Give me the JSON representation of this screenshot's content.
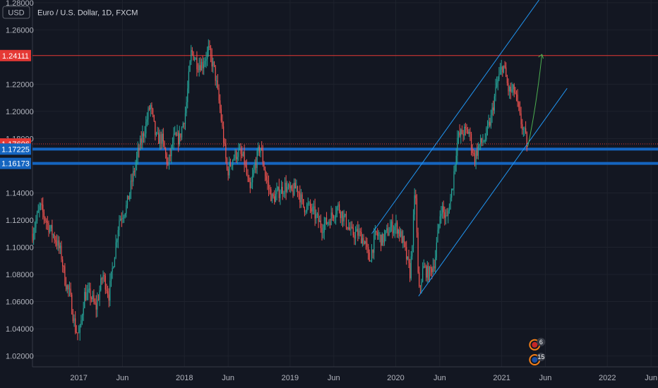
{
  "header": {
    "currency_unit": "USD",
    "symbol_title": "Euro / U.S. Dollar, 1D, FXCM"
  },
  "colors": {
    "background": "#131722",
    "up": "#26a69a",
    "down": "#ef5350",
    "resistance": "#e53935",
    "support": "#1565c0",
    "channel": "#2196f3",
    "projection": "#4caf50"
  },
  "chart_data": {
    "type": "line",
    "title": "Euro / U.S. Dollar, 1D, FXCM",
    "ylim": [
      1.012,
      1.282
    ],
    "xlim": [
      "2016-07-25",
      "2022-06-25"
    ],
    "y_ticks": [
      "1.28000",
      "1.26000",
      "1.22000",
      "1.20000",
      "1.18000",
      "1.14000",
      "1.12000",
      "1.10000",
      "1.08000",
      "1.06000",
      "1.04000",
      "1.02000"
    ],
    "x_ticks": [
      {
        "label": "2017",
        "date": "2017-01-01"
      },
      {
        "label": "Jun",
        "date": "2017-06-01"
      },
      {
        "label": "2018",
        "date": "2018-01-01"
      },
      {
        "label": "Jun",
        "date": "2018-06-01"
      },
      {
        "label": "2019",
        "date": "2019-01-01"
      },
      {
        "label": "Jun",
        "date": "2019-06-01"
      },
      {
        "label": "2020",
        "date": "2020-01-01"
      },
      {
        "label": "Jun",
        "date": "2020-06-01"
      },
      {
        "label": "2021",
        "date": "2021-01-01"
      },
      {
        "label": "Jun",
        "date": "2021-06-01"
      },
      {
        "label": "2022",
        "date": "2022-01-01"
      },
      {
        "label": "Jun",
        "date": "2022-06-01"
      }
    ],
    "series": [
      {
        "values": [
          [
            "2016-07-25",
            1.11
          ],
          [
            "2016-08-20",
            1.13
          ],
          [
            "2016-09-20",
            1.115
          ],
          [
            "2016-10-15",
            1.105
          ],
          [
            "2016-11-01",
            1.095
          ],
          [
            "2016-11-15",
            1.075
          ],
          [
            "2016-12-01",
            1.065
          ],
          [
            "2016-12-20",
            1.04
          ],
          [
            "2017-01-03",
            1.035
          ],
          [
            "2017-01-20",
            1.065
          ],
          [
            "2017-02-10",
            1.065
          ],
          [
            "2017-03-01",
            1.055
          ],
          [
            "2017-03-25",
            1.08
          ],
          [
            "2017-04-15",
            1.065
          ],
          [
            "2017-05-01",
            1.09
          ],
          [
            "2017-05-20",
            1.12
          ],
          [
            "2017-06-15",
            1.13
          ],
          [
            "2017-07-05",
            1.15
          ],
          [
            "2017-07-25",
            1.17
          ],
          [
            "2017-08-20",
            1.19
          ],
          [
            "2017-09-05",
            1.205
          ],
          [
            "2017-09-25",
            1.18
          ],
          [
            "2017-10-15",
            1.18
          ],
          [
            "2017-11-05",
            1.16
          ],
          [
            "2017-11-25",
            1.18
          ],
          [
            "2017-12-15",
            1.18
          ],
          [
            "2018-01-05",
            1.2
          ],
          [
            "2018-01-25",
            1.245
          ],
          [
            "2018-02-15",
            1.235
          ],
          [
            "2018-03-05",
            1.235
          ],
          [
            "2018-03-25",
            1.245
          ],
          [
            "2018-04-15",
            1.23
          ],
          [
            "2018-05-05",
            1.2
          ],
          [
            "2018-05-29",
            1.155
          ],
          [
            "2018-06-15",
            1.165
          ],
          [
            "2018-07-05",
            1.17
          ],
          [
            "2018-07-25",
            1.165
          ],
          [
            "2018-08-15",
            1.14
          ],
          [
            "2018-09-01",
            1.16
          ],
          [
            "2018-09-20",
            1.175
          ],
          [
            "2018-10-10",
            1.15
          ],
          [
            "2018-11-01",
            1.135
          ],
          [
            "2018-11-20",
            1.14
          ],
          [
            "2018-12-15",
            1.145
          ],
          [
            "2019-01-05",
            1.14
          ],
          [
            "2019-01-25",
            1.145
          ],
          [
            "2019-02-15",
            1.13
          ],
          [
            "2019-03-05",
            1.13
          ],
          [
            "2019-03-25",
            1.125
          ],
          [
            "2019-04-20",
            1.115
          ],
          [
            "2019-05-15",
            1.12
          ],
          [
            "2019-06-15",
            1.13
          ],
          [
            "2019-07-10",
            1.12
          ],
          [
            "2019-08-01",
            1.11
          ],
          [
            "2019-08-25",
            1.11
          ],
          [
            "2019-09-15",
            1.105
          ],
          [
            "2019-10-01",
            1.09
          ],
          [
            "2019-10-25",
            1.11
          ],
          [
            "2019-11-15",
            1.105
          ],
          [
            "2019-12-15",
            1.115
          ],
          [
            "2020-01-05",
            1.115
          ],
          [
            "2020-01-25",
            1.105
          ],
          [
            "2020-02-20",
            1.08
          ],
          [
            "2020-03-09",
            1.145
          ],
          [
            "2020-03-20",
            1.065
          ],
          [
            "2020-04-05",
            1.085
          ],
          [
            "2020-04-25",
            1.08
          ],
          [
            "2020-05-15",
            1.09
          ],
          [
            "2020-06-05",
            1.13
          ],
          [
            "2020-06-25",
            1.12
          ],
          [
            "2020-07-15",
            1.145
          ],
          [
            "2020-08-01",
            1.18
          ],
          [
            "2020-08-20",
            1.185
          ],
          [
            "2020-09-10",
            1.185
          ],
          [
            "2020-09-28",
            1.165
          ],
          [
            "2020-10-15",
            1.175
          ],
          [
            "2020-11-05",
            1.18
          ],
          [
            "2020-11-25",
            1.195
          ],
          [
            "2020-12-15",
            1.22
          ],
          [
            "2021-01-06",
            1.235
          ],
          [
            "2021-01-25",
            1.215
          ],
          [
            "2021-02-15",
            1.215
          ],
          [
            "2021-03-05",
            1.195
          ],
          [
            "2021-03-25",
            1.18
          ],
          [
            "2021-04-01",
            1.172
          ]
        ]
      }
    ],
    "price_tags": [
      {
        "label": "1.24111",
        "value": 1.24111,
        "role": "resistance"
      },
      {
        "label": "1.17606",
        "value": 1.17606,
        "role": "last-price"
      },
      {
        "label": "1.17225",
        "value": 1.17225,
        "role": "support"
      },
      {
        "label": "1.16173",
        "value": 1.16173,
        "role": "support"
      }
    ],
    "channel": {
      "lower": [
        [
          "2020-03-20",
          1.064
        ],
        [
          "2021-08-15",
          1.217
        ]
      ],
      "upper": [
        [
          "2019-10-10",
          1.11
        ],
        [
          "2021-05-10",
          1.282
        ]
      ]
    },
    "projection": [
      [
        "2021-04-01",
        1.174
      ],
      [
        "2021-05-20",
        1.242
      ]
    ],
    "event_badges": [
      {
        "count": "6",
        "icon": "us-flag-icon",
        "date": "2021-04-25",
        "value": 1.0282
      },
      {
        "count": "15",
        "icon": "eu-flag-icon",
        "date": "2021-04-25",
        "value": 1.0172
      }
    ]
  }
}
